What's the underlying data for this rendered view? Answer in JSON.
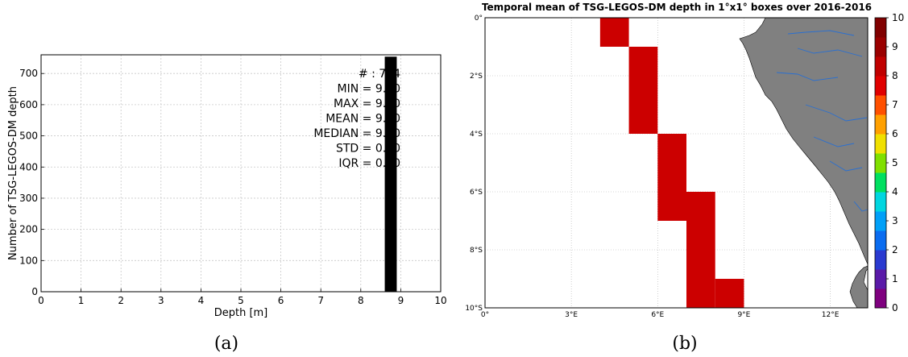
{
  "chart_data": [
    {
      "type": "bar",
      "xlabel": "Depth [m]",
      "ylabel": "Number of TSG-LEGOS-DM depth",
      "xlim": [
        0,
        10
      ],
      "ylim": [
        0,
        760
      ],
      "xticks": [
        "0",
        "1",
        "2",
        "3",
        "4",
        "5",
        "6",
        "7",
        "8",
        "9",
        "10"
      ],
      "yticks": [
        "0",
        "100",
        "200",
        "300",
        "400",
        "500",
        "600",
        "700"
      ],
      "grid": true,
      "bars": [
        {
          "x_start": 8.6,
          "x_end": 8.9,
          "value": 754
        }
      ],
      "stats": [
        "# : 754",
        "MIN = 9.00",
        "MAX = 9.00",
        "MEAN = 9.00",
        "MEDIAN = 9.00",
        "STD = 0.00",
        "IQR = 0.00"
      ],
      "caption": "(a)"
    },
    {
      "type": "heatmap",
      "title": "Temporal mean of TSG-LEGOS-DM depth in 1°x1° boxes over 2016-2016",
      "lon_range": [
        0,
        13.3
      ],
      "lat_range": [
        -10,
        0
      ],
      "xticks": [
        {
          "v": 0,
          "label": "0°"
        },
        {
          "v": 3,
          "label": "3°E"
        },
        {
          "v": 6,
          "label": "6°E"
        },
        {
          "v": 9,
          "label": "9°E"
        },
        {
          "v": 12,
          "label": "12°E"
        }
      ],
      "yticks": [
        {
          "v": 0,
          "label": "0°"
        },
        {
          "v": -2,
          "label": "2°S"
        },
        {
          "v": -4,
          "label": "4°S"
        },
        {
          "v": -6,
          "label": "6°S"
        },
        {
          "v": -8,
          "label": "8°S"
        },
        {
          "v": -10,
          "label": "10°S"
        }
      ],
      "cells": [
        {
          "lon": 4,
          "lat": 0,
          "value": 9
        },
        {
          "lon": 5,
          "lat": -1,
          "value": 9
        },
        {
          "lon": 5,
          "lat": -2,
          "value": 9
        },
        {
          "lon": 5,
          "lat": -3,
          "value": 9
        },
        {
          "lon": 6,
          "lat": -4,
          "value": 9
        },
        {
          "lon": 6,
          "lat": -5,
          "value": 9
        },
        {
          "lon": 6,
          "lat": -6,
          "value": 9
        },
        {
          "lon": 7,
          "lat": -6,
          "value": 9
        },
        {
          "lon": 7,
          "lat": -7,
          "value": 9
        },
        {
          "lon": 7,
          "lat": -8,
          "value": 9
        },
        {
          "lon": 7,
          "lat": -9,
          "value": 9
        },
        {
          "lon": 8,
          "lat": -9,
          "value": 9
        }
      ],
      "colorbar": {
        "range": [
          0,
          10
        ],
        "ticks": [
          "0",
          "1",
          "2",
          "3",
          "4",
          "5",
          "6",
          "7",
          "8",
          "9",
          "10"
        ],
        "colors": [
          "#7f007f",
          "#5a1aa8",
          "#2a3ad0",
          "#0a6cf0",
          "#00a0f8",
          "#00d6e0",
          "#00e060",
          "#80e000",
          "#f0e000",
          "#ffa000",
          "#ff5000",
          "#e00000",
          "#c00000",
          "#9a0000",
          "#800000"
        ]
      },
      "caption": "(b)"
    }
  ],
  "colors": {
    "cell": "#cc0000",
    "land": "#808080",
    "river": "#2a6fd0",
    "bar": "#000000"
  }
}
